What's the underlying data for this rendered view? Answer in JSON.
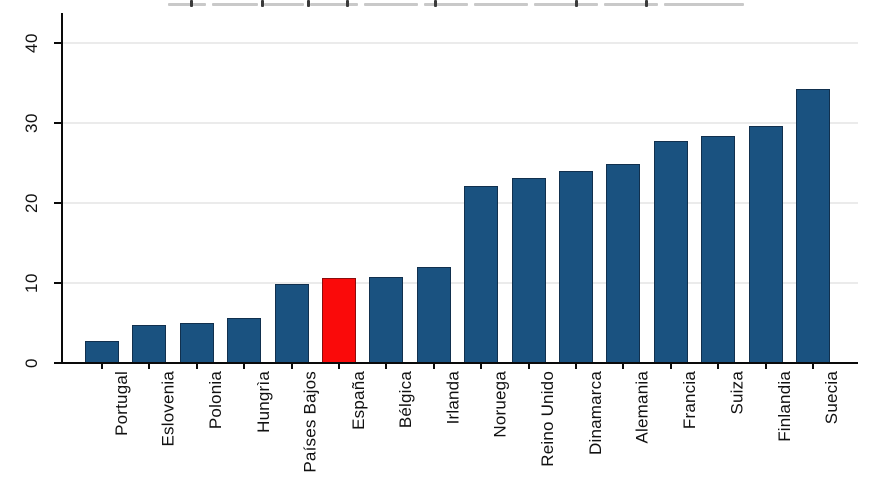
{
  "chart_data": {
    "type": "bar",
    "title": "",
    "title_clipped_at_top": true,
    "categories": [
      "Portugal",
      "Eslovenia",
      "Polonia",
      "Hungrìa",
      "Países Bajos",
      "España",
      "Bélgica",
      "Irlanda",
      "Noruega",
      "Reino Unido",
      "Dinamarca",
      "Alemania",
      "Francia",
      "Suiza",
      "Finlandia",
      "Suecia"
    ],
    "values": [
      2.8,
      4.7,
      5.0,
      5.6,
      9.9,
      10.6,
      10.8,
      12.0,
      22.1,
      23.1,
      24.0,
      24.9,
      27.8,
      28.4,
      29.6,
      34.2
    ],
    "highlight_category": "España",
    "xlabel": "",
    "ylabel": "",
    "ylim": [
      0,
      40
    ],
    "yticks": [
      0,
      10,
      20,
      30,
      40
    ],
    "grid": true,
    "legend": "none",
    "colors": {
      "bar_fill": "#1a5280",
      "bar_outline": "#11304e",
      "highlight_fill": "#fa0a0a",
      "highlight_outline": "#8c0d0d",
      "gridline": "#ebebeb",
      "axis": "#0a0a0a",
      "background": "#ffffff",
      "text": "#111111"
    }
  }
}
